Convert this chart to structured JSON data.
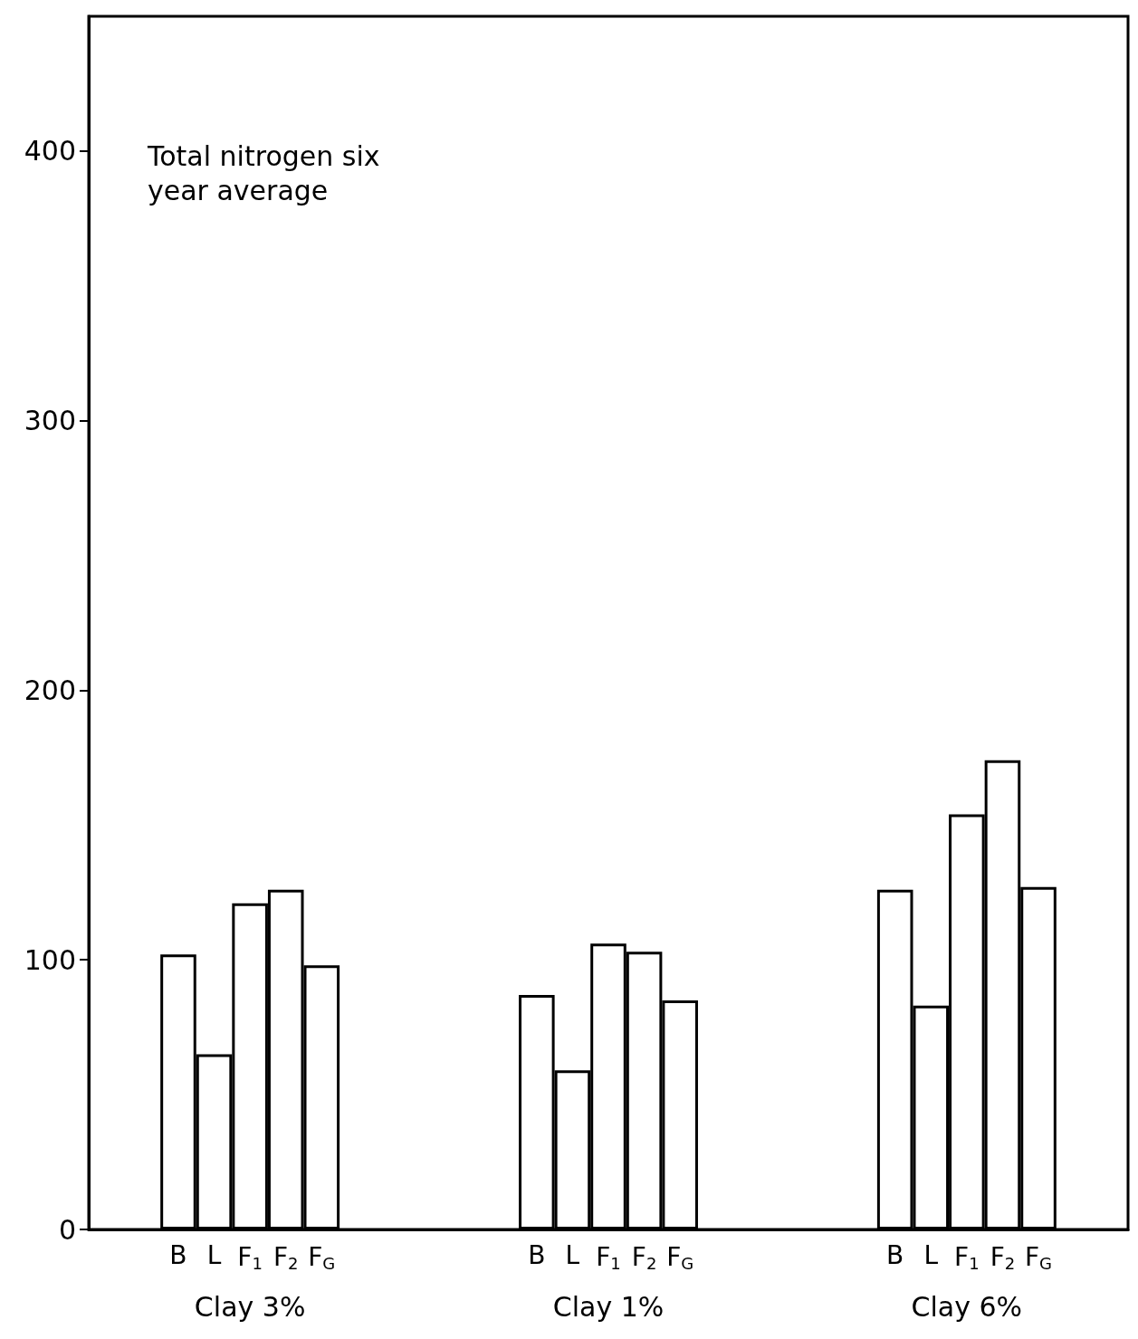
{
  "chart_data": {
    "type": "bar",
    "title": "Total nitrogen six year average",
    "categories": [
      null,
      null,
      "B",
      "L",
      "F$_{1}$",
      "F$_{2}$",
      "F$_{G}$",
      null,
      null,
      null,
      null,
      null,
      "B",
      "L",
      "F$_{1}$",
      "F$_{2}$",
      "F$_{G}$",
      null,
      null,
      null,
      null,
      null,
      "B",
      "L",
      "F$_{1}$",
      "F$_{2}$",
      "F$_{G}$",
      null,
      null
    ],
    "values": [
      null,
      null,
      102,
      65,
      121,
      126,
      98,
      null,
      null,
      null,
      null,
      null,
      87,
      59,
      106,
      103,
      85,
      null,
      null,
      null,
      null,
      null,
      126,
      83,
      154,
      174,
      127,
      null,
      null
    ],
    "color": "#ffffff",
    "annotations": [
      "Clay 3%",
      "Clay 1%",
      "Clay 6%"
    ],
    "ylim": [
      0,
      450
    ],
    "yticks": [
      0,
      100,
      200,
      300,
      400
    ],
    "grid": false
  }
}
